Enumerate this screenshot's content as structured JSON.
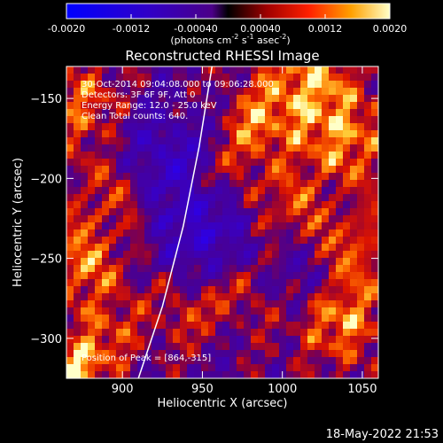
{
  "chart_data": {
    "type": "heatmap",
    "title": "Reconstructed RHESSI Image",
    "xlabel": "Heliocentric X (arcsec)",
    "ylabel": "Heliocentric Y (arcsec)",
    "xlim": [
      865,
      1060
    ],
    "ylim": [
      -325,
      -130
    ],
    "x_ticks": [
      900,
      950,
      1000,
      1050
    ],
    "y_ticks": [
      -150,
      -200,
      -250,
      -300
    ],
    "annotations": {
      "time_range": "30-Oct-2014 09:04:08.000 to 09:06:28.000",
      "detectors": "Detectors: 3F 6F 9F, Att 0",
      "energy": "Energy Range: 12.0 - 25.0 keV",
      "clean": "Clean     Total counts: 640.",
      "peak": "Position of Peak = [864,-315]"
    },
    "peak_position": [
      864,
      -315
    ],
    "limb_curve": [
      [
        910,
        -325
      ],
      [
        925,
        -280
      ],
      [
        938,
        -230
      ],
      [
        948,
        -180
      ],
      [
        956,
        -130
      ]
    ],
    "colorbar": {
      "min": -0.002,
      "max": 0.002,
      "tick_labels": [
        "-0.0020",
        "-0.0012",
        "-0.00040",
        "0.00040",
        "0.0012",
        "0.0020"
      ],
      "unit_label": "(photons cm",
      "unit_sup1": "-2",
      "unit_s": " s",
      "unit_sup2": "-1",
      "unit_asec": " asec",
      "unit_sup3": "-2",
      "unit_end": ")"
    },
    "footer_timestamp": "18-May-2022 21:53"
  }
}
